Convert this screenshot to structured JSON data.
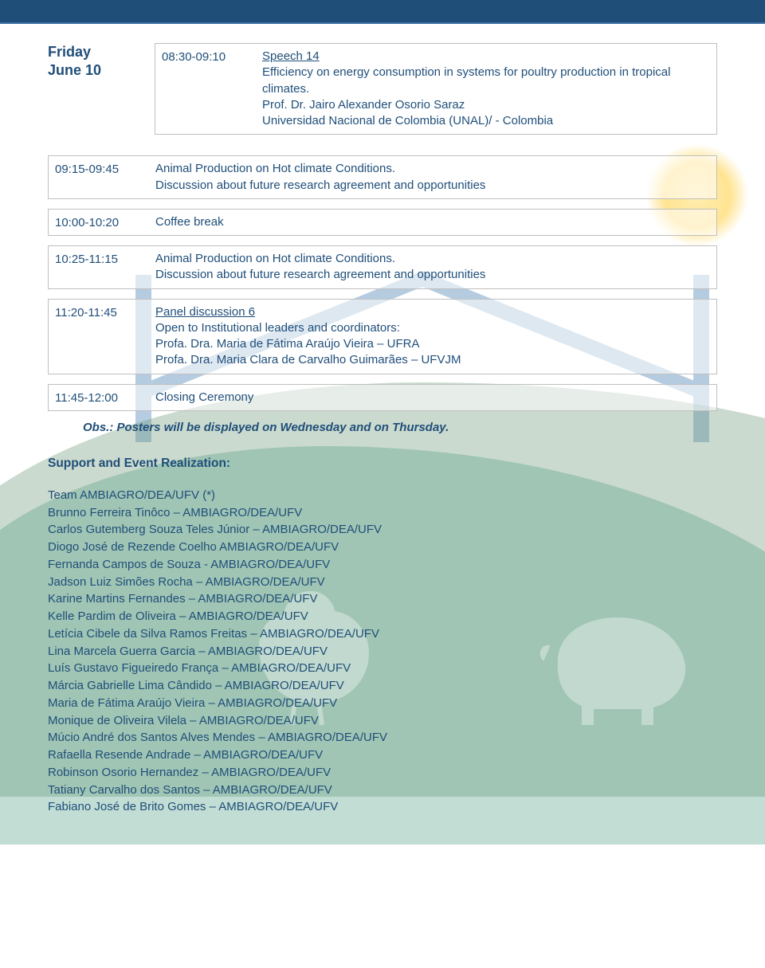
{
  "colors": {
    "primary_text": "#1f4e79",
    "border": "#bfbfbf",
    "top_band": "#1f4e79",
    "top_band_accent": "#3a6ea5",
    "hill1": "#6b9474",
    "hill2": "#4f9f84",
    "house": "#2f6fa8",
    "sun": "#ffd24a",
    "white": "#ffffff"
  },
  "day": {
    "name": "Friday",
    "date": "June 10"
  },
  "schedule": [
    {
      "time": "08:30-09:10",
      "title": "Speech 14",
      "lines": [
        "Efficiency on energy consumption in systems for poultry production in tropical climates.",
        "Prof. Dr. Jairo Alexander Osorio Saraz",
        "Universidad Nacional de Colombia (UNAL)/ - Colombia"
      ]
    },
    {
      "time": "09:15-09:45",
      "title": "",
      "lines": [
        "Animal Production on Hot climate Conditions.",
        "Discussion about future research agreement  and opportunities"
      ]
    },
    {
      "time": "10:00-10:20",
      "title": "",
      "lines": [
        "Coffee break"
      ]
    },
    {
      "time": "10:25-11:15",
      "title": "",
      "lines": [
        "Animal Production on Hot climate Conditions.",
        "Discussion about future research agreement  and opportunities"
      ]
    },
    {
      "time": "11:20-11:45",
      "title": "Panel discussion 6",
      "lines": [
        "Open to Institutional leaders and coordinators:",
        "Profa. Dra. Maria de Fátima Araújo Vieira – UFRA",
        "Profa. Dra. Maria Clara de Carvalho Guimarães – UFVJM"
      ]
    },
    {
      "time": "11:45-12:00",
      "title": "",
      "lines": [
        "Closing Ceremony"
      ]
    }
  ],
  "note": "Obs.: Posters will be displayed on Wednesday and on Thursday.",
  "support_heading": "Support and Event Realization:",
  "team": [
    "Team AMBIAGRO/DEA/UFV (*)",
    "Brunno Ferreira Tinôco – AMBIAGRO/DEA/UFV",
    "Carlos Gutemberg Souza Teles Júnior – AMBIAGRO/DEA/UFV",
    "Diogo José de Rezende Coelho AMBIAGRO/DEA/UFV",
    "Fernanda Campos de Souza - AMBIAGRO/DEA/UFV",
    "Jadson Luiz Simões Rocha – AMBIAGRO/DEA/UFV",
    "Karine Martins Fernandes – AMBIAGRO/DEA/UFV",
    "Kelle Pardim de Oliveira – AMBIAGRO/DEA/UFV",
    "Letícia Cibele da Silva Ramos Freitas – AMBIAGRO/DEA/UFV",
    "Lina Marcela Guerra Garcia – AMBIAGRO/DEA/UFV",
    "Luís Gustavo Figueiredo França – AMBIAGRO/DEA/UFV",
    "Márcia Gabrielle Lima Cândido – AMBIAGRO/DEA/UFV",
    "Maria de Fátima Araújo Vieira – AMBIAGRO/DEA/UFV",
    "Monique de Oliveira Vilela – AMBIAGRO/DEA/UFV",
    "Múcio André dos Santos Alves Mendes – AMBIAGRO/DEA/UFV",
    "Rafaella Resende Andrade – AMBIAGRO/DEA/UFV",
    "Robinson Osorio Hernandez – AMBIAGRO/DEA/UFV",
    "Tatiany Carvalho dos Santos – AMBIAGRO/DEA/UFV",
    "Fabiano José de Brito Gomes – AMBIAGRO/DEA/UFV"
  ]
}
